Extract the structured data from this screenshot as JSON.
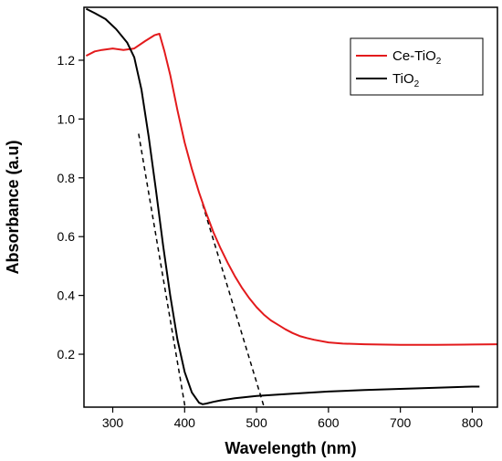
{
  "chart_data": {
    "type": "line",
    "xlabel": "Wavelength (nm)",
    "ylabel": "Absorbance (a.u)",
    "xlim": [
      260,
      835
    ],
    "ylim": [
      0.02,
      1.38
    ],
    "x_ticks": [
      300,
      400,
      500,
      600,
      700,
      800
    ],
    "y_ticks": [
      0.2,
      0.4,
      0.6,
      0.8,
      1.0,
      1.2
    ],
    "x_tick_labels": [
      "300",
      "400",
      "500",
      "600",
      "700",
      "800"
    ],
    "y_tick_labels": [
      "0.2",
      "0.4",
      "0.6",
      "0.8",
      "1.0",
      "1.2"
    ],
    "grid": false,
    "legend_position": "top-right",
    "series": [
      {
        "name": "Ce-TiO2",
        "name_main": "Ce-TiO",
        "name_sub": "2",
        "color": "#e31a1c",
        "x": [
          263,
          275,
          285,
          300,
          315,
          330,
          345,
          358,
          365,
          372,
          380,
          390,
          400,
          410,
          420,
          430,
          440,
          450,
          460,
          470,
          480,
          490,
          500,
          510,
          520,
          530,
          540,
          550,
          560,
          570,
          580,
          600,
          620,
          650,
          700,
          750,
          800,
          835
        ],
        "y": [
          1.215,
          1.23,
          1.235,
          1.24,
          1.235,
          1.24,
          1.265,
          1.285,
          1.29,
          1.23,
          1.15,
          1.03,
          0.92,
          0.83,
          0.75,
          0.68,
          0.615,
          0.56,
          0.51,
          0.465,
          0.425,
          0.39,
          0.36,
          0.335,
          0.315,
          0.3,
          0.285,
          0.272,
          0.262,
          0.255,
          0.249,
          0.24,
          0.236,
          0.234,
          0.232,
          0.232,
          0.233,
          0.234
        ]
      },
      {
        "name": "TiO2",
        "name_main": "TiO",
        "name_sub": "2",
        "color": "#000000",
        "x": [
          263,
          275,
          290,
          305,
          320,
          330,
          340,
          350,
          360,
          370,
          380,
          390,
          400,
          410,
          420,
          425,
          430,
          440,
          450,
          470,
          500,
          550,
          600,
          650,
          700,
          750,
          800,
          810
        ],
        "y": [
          1.375,
          1.36,
          1.34,
          1.305,
          1.26,
          1.21,
          1.1,
          0.94,
          0.76,
          0.57,
          0.4,
          0.25,
          0.14,
          0.07,
          0.035,
          0.03,
          0.032,
          0.038,
          0.043,
          0.05,
          0.058,
          0.066,
          0.073,
          0.078,
          0.082,
          0.086,
          0.09,
          0.09
        ]
      }
    ],
    "tangent_lines": [
      {
        "color": "#000000",
        "x": [
          336,
          402
        ],
        "y": [
          0.95,
          0.0
        ]
      },
      {
        "color": "#000000",
        "x": [
          425,
          513
        ],
        "y": [
          0.71,
          0.0
        ]
      }
    ]
  }
}
